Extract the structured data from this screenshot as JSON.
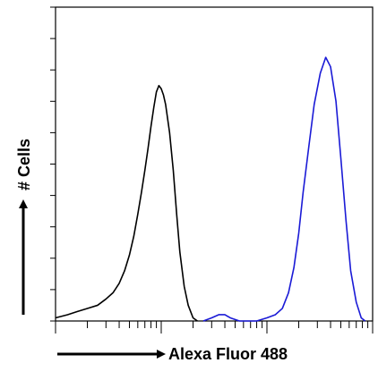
{
  "chart_data": {
    "type": "line",
    "title": "",
    "xlabel": "Alexa Fluor 488",
    "ylabel": "# Cells",
    "x_scale": "log",
    "xlim": [
      1,
      1000
    ],
    "ylim": [
      0,
      100
    ],
    "grid": false,
    "legend": "none",
    "tick_labels_shown": false,
    "series": [
      {
        "color": "#000000",
        "points": [
          [
            1.0,
            1
          ],
          [
            1.3,
            2
          ],
          [
            1.6,
            3
          ],
          [
            2.0,
            4
          ],
          [
            2.5,
            5
          ],
          [
            3.0,
            7
          ],
          [
            3.5,
            9
          ],
          [
            4.0,
            12
          ],
          [
            4.5,
            16
          ],
          [
            5.0,
            21
          ],
          [
            5.5,
            27
          ],
          [
            6.0,
            34
          ],
          [
            6.5,
            41
          ],
          [
            7.0,
            48
          ],
          [
            7.5,
            55
          ],
          [
            8.0,
            62
          ],
          [
            8.5,
            68
          ],
          [
            9.0,
            73
          ],
          [
            9.5,
            75
          ],
          [
            10.0,
            74
          ],
          [
            10.5,
            72
          ],
          [
            11.0,
            69
          ],
          [
            12.0,
            60
          ],
          [
            13.0,
            48
          ],
          [
            14.0,
            34
          ],
          [
            15.0,
            22
          ],
          [
            16.5,
            11
          ],
          [
            18.0,
            5
          ],
          [
            20.0,
            1
          ],
          [
            22.0,
            0
          ]
        ]
      },
      {
        "color": "#1a1ad6",
        "points": [
          [
            25.0,
            0
          ],
          [
            30.0,
            1
          ],
          [
            35.0,
            2
          ],
          [
            40.0,
            2
          ],
          [
            45.0,
            1
          ],
          [
            55.0,
            0
          ],
          [
            80.0,
            0
          ],
          [
            100.0,
            1
          ],
          [
            120.0,
            2
          ],
          [
            140.0,
            4
          ],
          [
            160.0,
            9
          ],
          [
            180.0,
            17
          ],
          [
            200.0,
            28
          ],
          [
            220.0,
            41
          ],
          [
            250.0,
            56
          ],
          [
            280.0,
            69
          ],
          [
            320.0,
            79
          ],
          [
            360.0,
            84
          ],
          [
            400.0,
            81
          ],
          [
            450.0,
            70
          ],
          [
            500.0,
            52
          ],
          [
            560.0,
            32
          ],
          [
            620.0,
            16
          ],
          [
            700.0,
            6
          ],
          [
            780.0,
            1
          ],
          [
            850.0,
            0
          ]
        ]
      }
    ]
  }
}
